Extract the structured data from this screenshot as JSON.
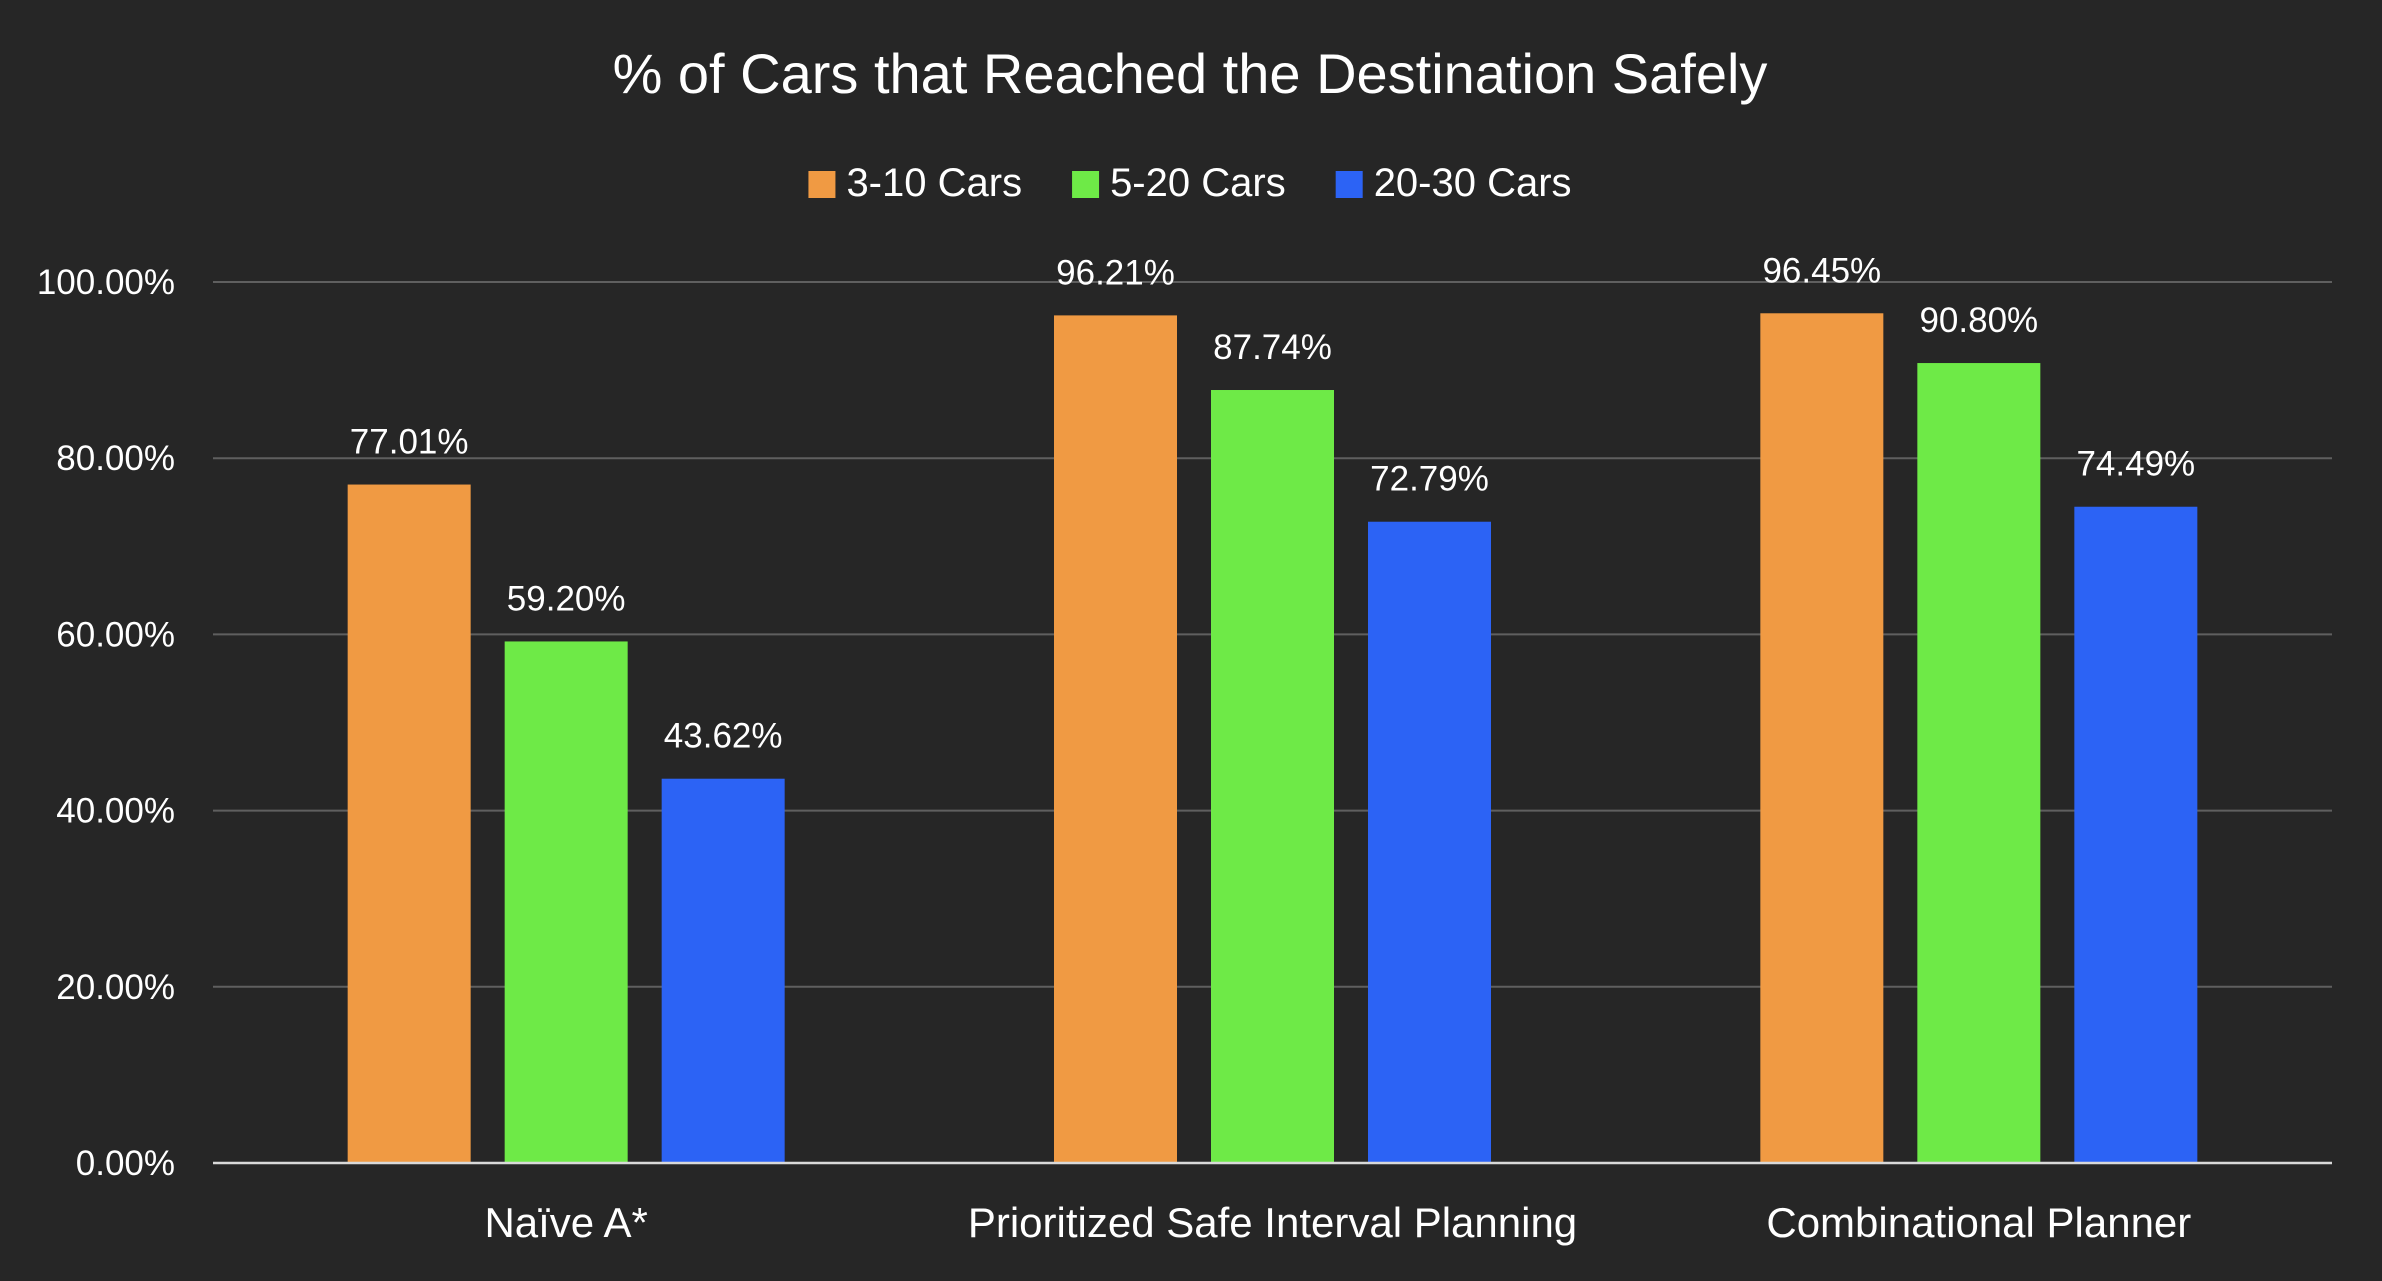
{
  "chart_data": {
    "type": "bar",
    "title": "% of Cars that Reached the Destination Safely",
    "xlabel": "",
    "ylabel": "",
    "ylim": [
      0,
      100
    ],
    "yticks": [
      "0.00%",
      "20.00%",
      "40.00%",
      "60.00%",
      "80.00%",
      "100.00%"
    ],
    "grid": true,
    "legend_position": "top-center",
    "categories": [
      "Naïve A*",
      "Prioritized Safe Interval Planning",
      "Combinational Planner"
    ],
    "series": [
      {
        "name": "3-10 Cars",
        "color": "#F09A43",
        "values": [
          77.01,
          96.21,
          96.45
        ],
        "labels": [
          "77.01%",
          "96.21%",
          "96.45%"
        ]
      },
      {
        "name": "5-20 Cars",
        "color": "#6EEA47",
        "values": [
          59.2,
          87.74,
          90.8
        ],
        "labels": [
          "59.20%",
          "87.74%",
          "90.80%"
        ]
      },
      {
        "name": "20-30 Cars",
        "color": "#2C63F5",
        "values": [
          43.62,
          72.79,
          74.49
        ],
        "labels": [
          "43.62%",
          "72.79%",
          "74.49%"
        ]
      }
    ]
  }
}
